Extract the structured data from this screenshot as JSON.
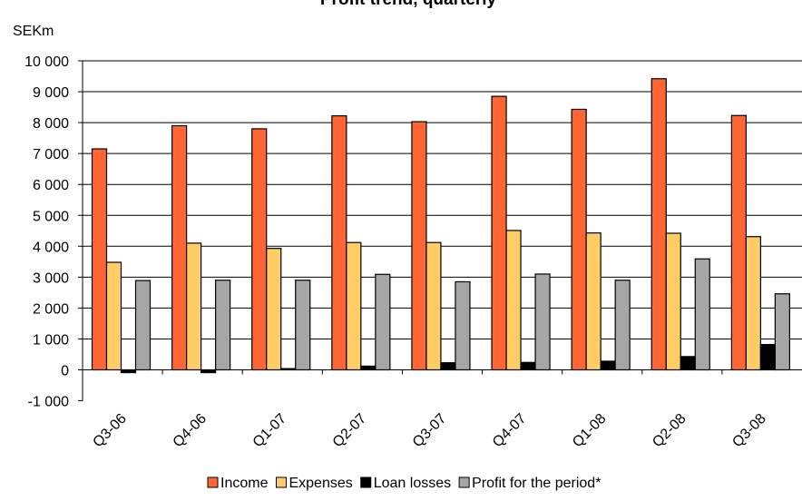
{
  "chart_data": {
    "type": "bar",
    "title": "Profit trend, quarterly",
    "ylabel": "SEKm",
    "xlabel": "",
    "categories": [
      "Q3-06",
      "Q4-06",
      "Q1-07",
      "Q2-07",
      "Q3-07",
      "Q4-07",
      "Q1-08",
      "Q2-08",
      "Q3-08"
    ],
    "series": [
      {
        "name": "Income",
        "color": "#FF6633",
        "values": [
          7150,
          7900,
          7800,
          8220,
          8030,
          8850,
          8430,
          9420,
          8230
        ]
      },
      {
        "name": "Expenses",
        "color": "#FFCC66",
        "values": [
          3480,
          4100,
          3930,
          4120,
          4120,
          4510,
          4430,
          4420,
          4310
        ]
      },
      {
        "name": "Loan losses",
        "color": "#000000",
        "values": [
          -90,
          -90,
          40,
          120,
          230,
          240,
          280,
          430,
          820
        ]
      },
      {
        "name": "Profit for the period*",
        "color": "#A6A6A6",
        "values": [
          2890,
          2900,
          2900,
          3090,
          2850,
          3100,
          2900,
          3590,
          2460
        ]
      }
    ],
    "yticks": [
      "10 000",
      "9 000",
      "8 000",
      "7 000",
      "6 000",
      "5 000",
      "4 000",
      "3 000",
      "2 000",
      "1 000",
      "0",
      "-1 000"
    ],
    "ylim": [
      -1000,
      10000
    ],
    "grid": true,
    "legend_position": "bottom"
  }
}
